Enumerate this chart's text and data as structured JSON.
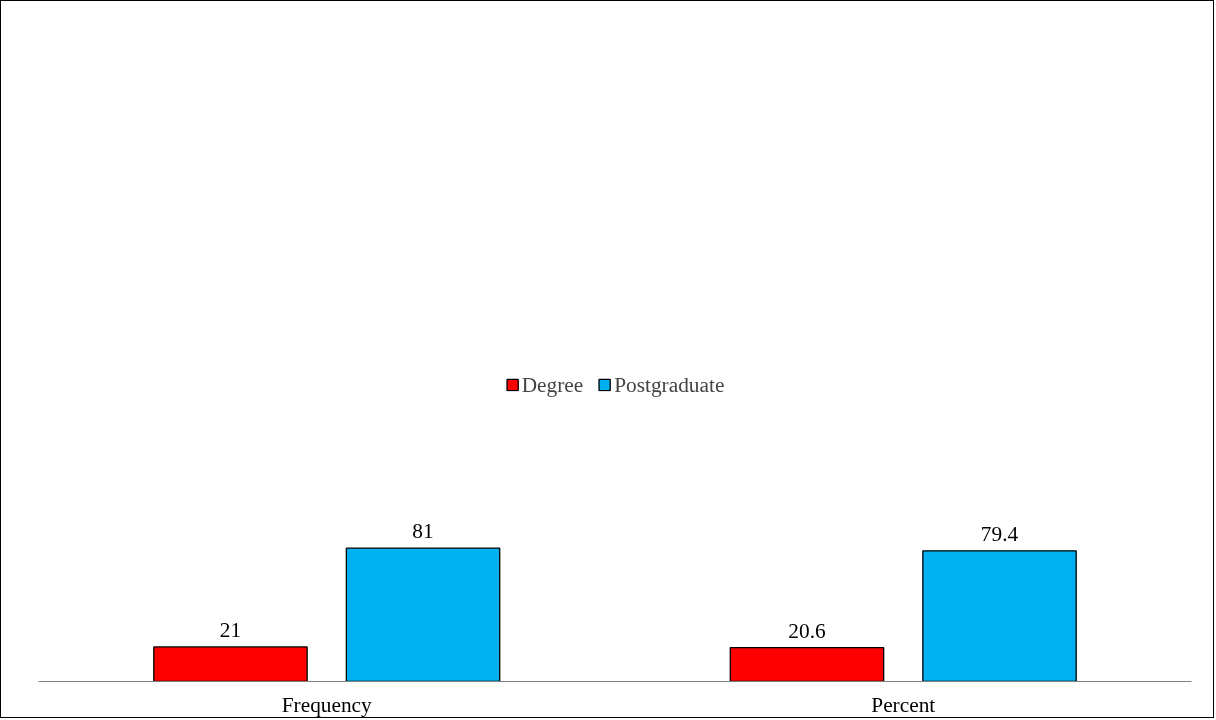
{
  "chart_data": {
    "type": "bar",
    "categories": [
      "Frequency",
      "Percent"
    ],
    "series": [
      {
        "name": "Degree",
        "color": "#ff0000",
        "values": [
          21,
          20.6
        ]
      },
      {
        "name": "Postgraduate",
        "color": "#00b0f0",
        "values": [
          81,
          79.4
        ]
      }
    ],
    "data_labels": true,
    "legend": "top",
    "grid": false,
    "tick_labels": "x"
  }
}
